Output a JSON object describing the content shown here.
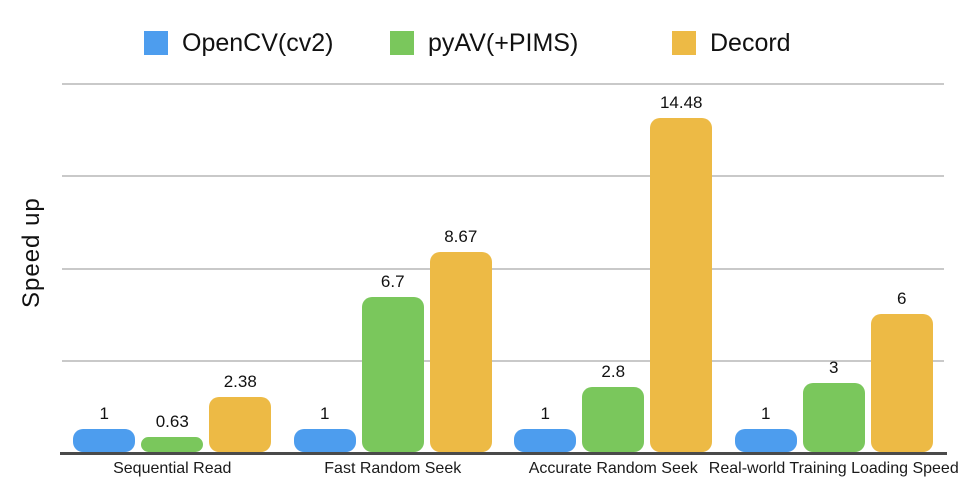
{
  "page": {
    "background": "#ffffff"
  },
  "legend": {
    "items": [
      {
        "label": "OpenCV(cv2)",
        "color": "#4D9DEE"
      },
      {
        "label": "pyAV(+PIMS)",
        "color": "#7AC75C"
      },
      {
        "label": "Decord",
        "color": "#EDBA45"
      }
    ]
  },
  "axes": {
    "ylabel": "Speed up"
  },
  "chart_data": {
    "type": "bar",
    "title": "",
    "xlabel": "",
    "ylabel": "Speed up",
    "categories": [
      "Sequential Read",
      "Fast Random Seek",
      "Accurate Random Seek",
      "Real-world Training Loading Speed"
    ],
    "series": [
      {
        "name": "OpenCV(cv2)",
        "color": "#4D9DEE",
        "values": [
          1,
          1,
          1,
          1
        ]
      },
      {
        "name": "pyAV(+PIMS)",
        "color": "#7AC75C",
        "values": [
          0.63,
          6.7,
          2.8,
          3
        ]
      },
      {
        "name": "Decord",
        "color": "#EDBA45",
        "values": [
          2.38,
          8.67,
          14.48,
          6
        ]
      }
    ],
    "value_labels": [
      [
        "1",
        "0.63",
        "2.38"
      ],
      [
        "1",
        "6.7",
        "8.67"
      ],
      [
        "1",
        "2.8",
        "14.48"
      ],
      [
        "1",
        "3",
        "6"
      ]
    ],
    "ylim": [
      0,
      16
    ],
    "gridlines": [
      4,
      8,
      12,
      16
    ],
    "grid": true,
    "legend_position": "top",
    "style_colors": {
      "gridline": "#c9c9c9",
      "axis_line": "#4a4a4a",
      "text": "#111111"
    }
  }
}
